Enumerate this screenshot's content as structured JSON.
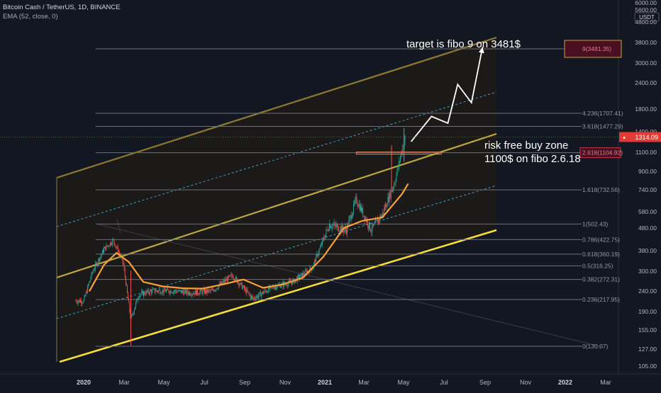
{
  "header": {
    "symbol_line": "Bitcoin Cash / TetherUS, 1D, BINANCE",
    "indicator_line": "EMA (52, close, 0)"
  },
  "colors": {
    "background": "#131722",
    "channel_outer": "#8d7a32",
    "channel_mid": "#bfa640",
    "channel_bottom": "#f5dd3b",
    "channel_dashed": "#3f9fc9",
    "candle_up": "#26a69a",
    "candle_down": "#ef5350",
    "ema": "#f7a03a",
    "fib_line": "#6e7079",
    "arrow": "#ffffff",
    "last_price_bg": "#e53935",
    "fib_box_fill": "#4a0f22",
    "fib_box_border": "#c3a540",
    "risk_line": "#f08a5a"
  },
  "price_axis": {
    "unit_label": "USDT",
    "last_price": "1314.09",
    "ticks": [
      "6000.00",
      "5600.00",
      "4800.00",
      "3800.00",
      "3000.00",
      "2400.00",
      "1800.00",
      "1400.00",
      "1100.00",
      "900.00",
      "740.00",
      "580.00",
      "480.00",
      "380.00",
      "300.00",
      "240.00",
      "190.00",
      "155.00",
      "127.00",
      "105.00"
    ]
  },
  "time_axis": {
    "ticks": [
      "2020",
      "Mar",
      "May",
      "Jul",
      "Sep",
      "Nov",
      "2021",
      "Mar",
      "May",
      "Jul",
      "Sep",
      "Nov",
      "2022",
      "Mar"
    ]
  },
  "annotations": {
    "target_text": "target is fibo 9 on  3481$",
    "risk_line1": "risk free buy zone",
    "risk_line2": "1100$ on fibo 2.6.18"
  },
  "chart_data": {
    "type": "candlestick",
    "title": "Bitcoin Cash / TetherUS, 1D, BINANCE",
    "y_scale": "log",
    "fib_levels": [
      {
        "label": "9(3481.35)",
        "value": 3481.35
      },
      {
        "label": "4.236(1707.41)",
        "value": 1707.41
      },
      {
        "label": "3.618(1477.29)",
        "value": 1477.29
      },
      {
        "label": "2.618(1104.92)",
        "value": 1104.92
      },
      {
        "label": "1.618(732.56)",
        "value": 732.56
      },
      {
        "label": "1(502.43)",
        "value": 502.43
      },
      {
        "label": "0.786(422.75)",
        "value": 422.75
      },
      {
        "label": "0.618(360.19)",
        "value": 360.19
      },
      {
        "label": "0.5(316.25)",
        "value": 316.25
      },
      {
        "label": "0.382(272.31)",
        "value": 272.31
      },
      {
        "label": "0.236(217.95)",
        "value": 217.95
      },
      {
        "label": "0(130.07)",
        "value": 130.07
      }
    ],
    "price_series": {
      "name": "BCHUSDT",
      "points": [
        [
          "2020-01-01",
          215
        ],
        [
          "2020-01-15",
          300
        ],
        [
          "2020-02-01",
          380
        ],
        [
          "2020-02-15",
          420
        ],
        [
          "2020-03-01",
          330
        ],
        [
          "2020-03-13",
          175
        ],
        [
          "2020-03-25",
          230
        ],
        [
          "2020-04-15",
          240
        ],
        [
          "2020-05-15",
          240
        ],
        [
          "2020-06-15",
          235
        ],
        [
          "2020-07-15",
          240
        ],
        [
          "2020-08-15",
          285
        ],
        [
          "2020-09-15",
          220
        ],
        [
          "2020-10-15",
          250
        ],
        [
          "2020-11-15",
          265
        ],
        [
          "2020-12-15",
          310
        ],
        [
          "2021-01-10",
          500
        ],
        [
          "2021-02-05",
          470
        ],
        [
          "2021-02-20",
          660
        ],
        [
          "2021-03-15",
          470
        ],
        [
          "2021-04-01",
          560
        ],
        [
          "2021-04-20",
          800
        ],
        [
          "2021-05-05",
          1300
        ]
      ]
    },
    "ema_series": {
      "name": "EMA (52, close, 0)",
      "points": [
        [
          "2020-01-10",
          240
        ],
        [
          "2020-02-01",
          320
        ],
        [
          "2020-02-20",
          365
        ],
        [
          "2020-03-10",
          330
        ],
        [
          "2020-04-01",
          265
        ],
        [
          "2020-05-01",
          252
        ],
        [
          "2020-06-01",
          247
        ],
        [
          "2020-07-01",
          246
        ],
        [
          "2020-08-01",
          258
        ],
        [
          "2020-09-01",
          272
        ],
        [
          "2020-10-01",
          248
        ],
        [
          "2020-11-01",
          258
        ],
        [
          "2020-12-01",
          278
        ],
        [
          "2021-01-01",
          350
        ],
        [
          "2021-02-01",
          480
        ],
        [
          "2021-03-01",
          520
        ],
        [
          "2021-04-01",
          540
        ],
        [
          "2021-05-01",
          700
        ],
        [
          "2021-05-10",
          780
        ]
      ]
    },
    "projection_path": [
      [
        "2021-05-15",
        1250
      ],
      [
        "2021-06-15",
        1650
      ],
      [
        "2021-07-10",
        1530
      ],
      [
        "2021-07-25",
        2350
      ],
      [
        "2021-08-15",
        1920
      ],
      [
        "2021-09-01",
        3550
      ]
    ],
    "risk_free_zone": {
      "value": 1100,
      "from": "2021-03-01",
      "to": "2021-06-30"
    },
    "grid": false,
    "legend": "top-left"
  }
}
